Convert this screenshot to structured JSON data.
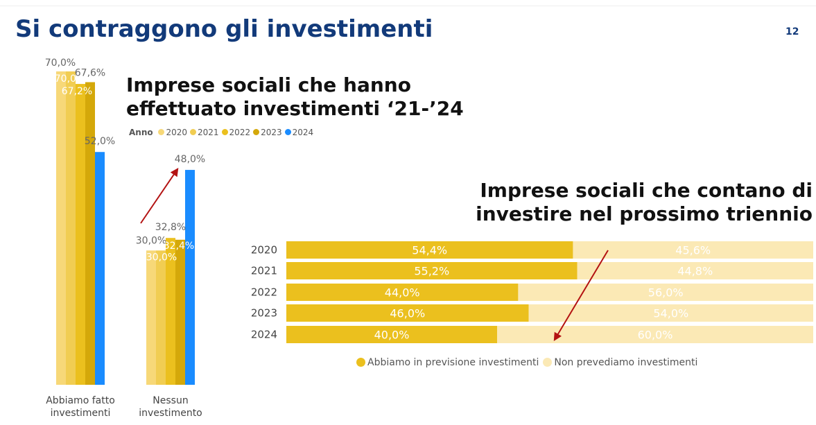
{
  "slide": {
    "title": "Si contraggono gli investimenti",
    "page_number": "12"
  },
  "colors": {
    "title": "#123a7a",
    "arrow": "#b31212"
  },
  "chart_data": [
    {
      "type": "bar",
      "title": "Imprese sociali che hanno effettuato investimenti ‘21-’24",
      "title_lines": [
        "Imprese sociali che hanno",
        "effettuato investimenti ‘21-’24"
      ],
      "legend_title": "Anno",
      "legend_placement": "top",
      "categories": [
        "Abbiamo fatto investimenti",
        "Nessun investimento"
      ],
      "category_label_lines": [
        [
          "Abbiamo fatto",
          "investimenti"
        ],
        [
          "Nessun",
          "investimento"
        ]
      ],
      "series": [
        {
          "name": "2020",
          "values": [
            70.0,
            30.0
          ],
          "labels": [
            "70,0%",
            "30,0%"
          ],
          "color": "#f7d878"
        },
        {
          "name": "2021",
          "values": [
            70.0,
            30.0
          ],
          "labels": [
            "70,0%",
            "30,0%"
          ],
          "color": "#f1cd52"
        },
        {
          "name": "2022",
          "values": [
            67.2,
            32.8
          ],
          "labels": [
            "67,2%",
            "32,8%"
          ],
          "color": "#ebc01e"
        },
        {
          "name": "2023",
          "values": [
            67.6,
            32.4
          ],
          "labels": [
            "67,6%",
            "32,4%"
          ],
          "color": "#d4a80a"
        },
        {
          "name": "2024",
          "values": [
            52.0,
            48.0
          ],
          "labels": [
            "52,0%",
            "48,0%"
          ],
          "color": "#1a8cff"
        }
      ],
      "ylim": [
        0,
        70
      ],
      "grid": false,
      "annotation": "arrow pointing up to 2024 value of Nessun investimento"
    },
    {
      "type": "bar",
      "orientation": "horizontal",
      "stacked": "100%",
      "title": "Imprese sociali che contano di investire nel prossimo triennio",
      "title_lines": [
        "Imprese sociali che contano di",
        "investire nel prossimo triennio"
      ],
      "legend_placement": "bottom",
      "categories": [
        "2020",
        "2021",
        "2022",
        "2023",
        "2024"
      ],
      "series": [
        {
          "name": "Abbiamo in previsione investimenti",
          "values": [
            54.4,
            55.2,
            44.0,
            46.0,
            40.0
          ],
          "labels": [
            "54,4%",
            "55,2%",
            "44,0%",
            "46,0%",
            "40,0%"
          ],
          "color": "#ebc01e"
        },
        {
          "name": "Non prevediamo investimenti",
          "values": [
            45.6,
            44.8,
            56.0,
            54.0,
            60.0
          ],
          "labels": [
            "45,6%",
            "44,8%",
            "56,0%",
            "54,0%",
            "60,0%"
          ],
          "color": "#fbe9b5"
        }
      ],
      "xlim": [
        0,
        100
      ],
      "grid": false,
      "annotation": "arrow pointing down toward 2024 row"
    }
  ]
}
